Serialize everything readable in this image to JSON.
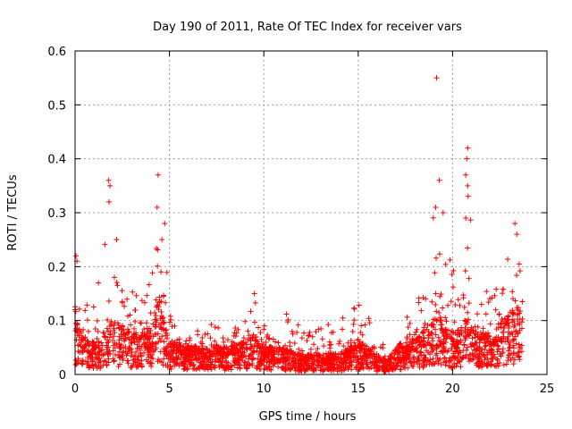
{
  "chart_data": {
    "type": "scatter",
    "title": "Day 190 of 2011, Rate Of TEC Index for receiver vars",
    "xlabel": "GPS time / hours",
    "ylabel": "ROTI / TECUs",
    "xlim": [
      0,
      25
    ],
    "ylim": [
      0,
      0.6
    ],
    "xticks": [
      "0",
      "5",
      "10",
      "15",
      "20",
      "25"
    ],
    "yticks": [
      "0",
      "0.1",
      "0.2",
      "0.3",
      "0.4",
      "0.5",
      "0.6"
    ],
    "grid": true,
    "marker": "+",
    "color": "#ff0000",
    "series": [
      {
        "name": "ROTI",
        "profile": [
          [
            0.0,
            0.08,
            0.22
          ],
          [
            0.5,
            0.05,
            0.13
          ],
          [
            1.0,
            0.05,
            0.15
          ],
          [
            1.5,
            0.06,
            0.22
          ],
          [
            1.8,
            0.07,
            0.36
          ],
          [
            2.0,
            0.08,
            0.25
          ],
          [
            2.5,
            0.07,
            0.18
          ],
          [
            3.0,
            0.06,
            0.16
          ],
          [
            3.5,
            0.06,
            0.15
          ],
          [
            4.0,
            0.07,
            0.18
          ],
          [
            4.4,
            0.12,
            0.37
          ],
          [
            4.7,
            0.08,
            0.28
          ],
          [
            5.0,
            0.05,
            0.12
          ],
          [
            6.0,
            0.04,
            0.08
          ],
          [
            7.0,
            0.04,
            0.1
          ],
          [
            8.0,
            0.04,
            0.08
          ],
          [
            9.0,
            0.05,
            0.1
          ],
          [
            9.5,
            0.06,
            0.15
          ],
          [
            10.0,
            0.04,
            0.1
          ],
          [
            11.0,
            0.04,
            0.12
          ],
          [
            12.0,
            0.03,
            0.09
          ],
          [
            13.0,
            0.03,
            0.1
          ],
          [
            14.0,
            0.03,
            0.1
          ],
          [
            15.0,
            0.05,
            0.14
          ],
          [
            16.0,
            0.03,
            0.08
          ],
          [
            16.5,
            0.02,
            0.05
          ],
          [
            17.0,
            0.04,
            0.11
          ],
          [
            18.0,
            0.05,
            0.12
          ],
          [
            19.0,
            0.08,
            0.3
          ],
          [
            19.2,
            0.1,
            0.55
          ],
          [
            19.5,
            0.07,
            0.3
          ],
          [
            20.0,
            0.06,
            0.2
          ],
          [
            20.5,
            0.07,
            0.25
          ],
          [
            20.8,
            0.09,
            0.42
          ],
          [
            21.0,
            0.07,
            0.25
          ],
          [
            21.5,
            0.06,
            0.2
          ],
          [
            22.0,
            0.06,
            0.18
          ],
          [
            22.5,
            0.07,
            0.2
          ],
          [
            23.0,
            0.09,
            0.26
          ],
          [
            23.5,
            0.1,
            0.27
          ],
          [
            23.7,
            0.08,
            0.2
          ]
        ],
        "peaks": [
          [
            0.05,
            0.22
          ],
          [
            0.1,
            0.21
          ],
          [
            1.78,
            0.36
          ],
          [
            1.85,
            0.35
          ],
          [
            1.8,
            0.32
          ],
          [
            2.2,
            0.25
          ],
          [
            4.4,
            0.37
          ],
          [
            4.35,
            0.31
          ],
          [
            4.75,
            0.28
          ],
          [
            4.6,
            0.25
          ],
          [
            9.5,
            0.15
          ],
          [
            19.15,
            0.55
          ],
          [
            19.3,
            0.36
          ],
          [
            19.1,
            0.31
          ],
          [
            19.5,
            0.3
          ],
          [
            20.8,
            0.42
          ],
          [
            20.75,
            0.4
          ],
          [
            20.7,
            0.37
          ],
          [
            20.8,
            0.35
          ],
          [
            20.7,
            0.29
          ],
          [
            23.3,
            0.28
          ],
          [
            23.4,
            0.26
          ]
        ]
      }
    ]
  }
}
